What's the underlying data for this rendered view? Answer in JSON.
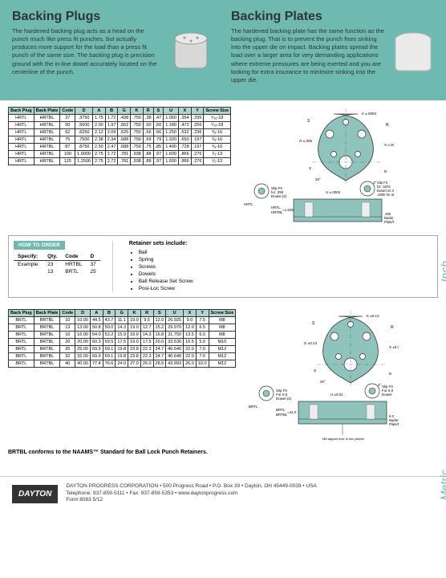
{
  "header": {
    "plugs": {
      "title": "Backing Plugs",
      "body": "The hardened backing plug acts as a head on the punch much like press fit punches, but actually produces more support for the load than a press fit punch of the same size. The backing plug is precision ground with the in-line dowel accurately located on the centerline of the punch."
    },
    "plates": {
      "title": "Backing Plates",
      "body": "The hardened backing plate has the same function as the backing plug. That is to prevent the punch from sinking into the upper die on impact. Backing plates spread the load over a larger area for very demanding applications where extreme pressures are being exerted and you are looking for extra insurance to minimize sinking into the upper die."
    }
  },
  "tabs": {
    "inch": "Inch",
    "metric": "Metric"
  },
  "tableInch": {
    "columns": [
      "Back Plug",
      "Back Plate",
      "Code",
      "D",
      "A",
      "B",
      "G",
      "K",
      "R",
      "S",
      "U",
      "X",
      "Y",
      "Screw Size"
    ],
    "rows": [
      [
        "HRTL",
        "HRTBL",
        "37",
        ".3750",
        "1.75",
        "1.72",
        ".438",
        ".750",
        ".38",
        ".47",
        "1.060",
        ".354",
        ".295",
        "⁵⁄₁₆-18"
      ],
      [
        "HRTL",
        "HRTBL",
        "50",
        ".5000",
        "2.00",
        "1.97",
        ".562",
        ".750",
        ".50",
        ".60",
        "1.180",
        ".472",
        ".256",
        "⁵⁄₁₆-18"
      ],
      [
        "HRTL",
        "HRTBL",
        "62",
        ".6250",
        "2.12",
        "2.09",
        ".625",
        ".750",
        ".56",
        ".66",
        "1.250",
        ".532",
        ".236",
        "³⁄₈-16"
      ],
      [
        "HRTL",
        "HRTBL",
        "75",
        ".7500",
        "2.38",
        "2.34",
        ".688",
        ".750",
        ".69",
        ".79",
        "1.320",
        ".650",
        ".197",
        "³⁄₈-16"
      ],
      [
        "HRTL",
        "HRTBL",
        "87",
        ".8750",
        "2.50",
        "2.47",
        ".688",
        ".750",
        ".75",
        ".85",
        "1.400",
        ".728",
        ".197",
        "³⁄₈-16"
      ],
      [
        "HRTL",
        "HRTBL",
        "100",
        "1.0000",
        "2.75",
        "2.72",
        ".781",
        ".938",
        ".88",
        ".97",
        "1.600",
        ".866",
        ".276",
        "¹⁄₂-13"
      ],
      [
        "HRTL",
        "HRTBL",
        "125",
        "1.2500",
        "2.75",
        "2.72",
        ".781",
        ".938",
        ".88",
        ".97",
        "1.600",
        ".866",
        ".276",
        "¹⁄₂-13"
      ]
    ]
  },
  "tableMetric": {
    "columns": [
      "Back Plug",
      "Back Plate",
      "Code",
      "D",
      "A",
      "B",
      "G",
      "K",
      "R",
      "S",
      "U",
      "X",
      "Y",
      "Screw Size"
    ],
    "rows": [
      [
        "BRTL",
        "BRTBL",
        "10",
        "10.00",
        "44.5",
        "43.7",
        "11.1",
        "19.0",
        "9.5",
        "12.0",
        "26.925",
        "9.0",
        "7.5",
        "M8"
      ],
      [
        "BRTL",
        "BRTBL",
        "13",
        "13.00",
        "50.8",
        "50.0",
        "14.3",
        "19.0",
        "12.7",
        "15.2",
        "29.970",
        "12.0",
        "6.5",
        "M8"
      ],
      [
        "BRTL",
        "BRTBL",
        "16",
        "16.00",
        "54.0",
        "53.2",
        "15.9",
        "19.0",
        "14.3",
        "16.8",
        "31.750",
        "13.5",
        "6.0",
        "M8"
      ],
      [
        "BRTL",
        "BRTBL",
        "20",
        "20.00",
        "60.3",
        "59.5",
        "17.5",
        "19.0",
        "17.5",
        "20.0",
        "33.530",
        "16.5",
        "5.0",
        "M10"
      ],
      [
        "BRTL",
        "BRTBL",
        "25",
        "25.00",
        "69.9",
        "69.1",
        "19.8",
        "23.8",
        "22.3",
        "24.7",
        "40.640",
        "22.0",
        "7.0",
        "M12"
      ],
      [
        "BRTL",
        "BRTBL",
        "32",
        "32.00",
        "69.9",
        "69.1",
        "19.8",
        "23.8",
        "22.3",
        "24.7",
        "40.640",
        "22.0",
        "7.0",
        "M12"
      ],
      [
        "BRTL",
        "BRTBL",
        "40",
        "40.00",
        "77.4",
        "76.6",
        "24.0",
        "27.0",
        "26.0",
        "28.5",
        "43.993",
        "26.0",
        "10.0",
        "M12"
      ]
    ]
  },
  "orderBox": {
    "badge": "HOW TO ORDER",
    "cols": [
      "Specify:",
      "Qty.",
      "Code",
      "D"
    ],
    "example": "Example:",
    "rows": [
      [
        "23",
        "HRTBL",
        "37"
      ],
      [
        "13",
        "BRTL",
        "25"
      ]
    ],
    "retainerTitle": "Retainer sets include:",
    "retainerItems": [
      "Ball",
      "Spring",
      "Screws",
      "Dowels",
      "Ball Release Set Screw",
      "Posi-Loc Screw"
    ]
  },
  "diagram": {
    "inch": {
      "dims": {
        "A": "A",
        "R": "R",
        "S": "S",
        "K": "K ±.0004",
        "X": "X ±.0004",
        "G": "G ±.005",
        "Y": "Y",
        "D": "D ⁽¹⁾",
        "ang1": "20°",
        "ang2": "3°"
      },
      "slipLeft": "Slip Fit for .250 Dowel (2)",
      "slipRight": "Slip Fit for .1875 Dowel on 37, .2500 for others",
      "uLabel": "U ±.0004",
      "hrtl": "HRTL",
      "hrtbl": "HRTL HRTBL",
      "h1": "=1.625",
      "plateLabel": ".250 Backing Plate/Plug"
    },
    "metric": {
      "dims": {
        "A": "A",
        "R": "R",
        "S": "S",
        "K": "K ±0.13",
        "X": "X ±0.01",
        "G": "G ±0.13",
        "Y": "Y",
        "D": "D ⁽¹⁾",
        "ang1": "20°",
        "ang2": "3°"
      },
      "slipLeft": "Slip Fit For 6.0 Dowel (2)",
      "slipRight": "Slip Fit For 6.0 Dowel",
      "uLabel": "U ±0.01",
      "brtl": "BRTL",
      "brtbl": "BRTL BRTBL",
      "h1": "=41.0",
      "plateLabel": "6.3 Backing Plate/Plug",
      "tapNote": "M8 tapped hole in two places for mounting metric urethane stripping unit to retainer."
    }
  },
  "conform": "BRTBL conforms to the NAAMS™ Standard for Ball Lock Punch Retainers.",
  "footer": {
    "logo": "DAYTON",
    "line1": "DAYTON PROGRESS CORPORATION • 500 Progress Road • P.O. Box 39 • Dayton, OH  45449-0039 • USA",
    "line2": "Telephone: 937-859-5111 • Fax: 937-859-5353 • www.daytonprogress.com",
    "form": "Form 8083 5/12"
  },
  "colors": {
    "teal": "#6eb9b0",
    "tealLight": "#b0d4ce",
    "diagBlue": "#8fc4bd",
    "border": "#333333"
  }
}
